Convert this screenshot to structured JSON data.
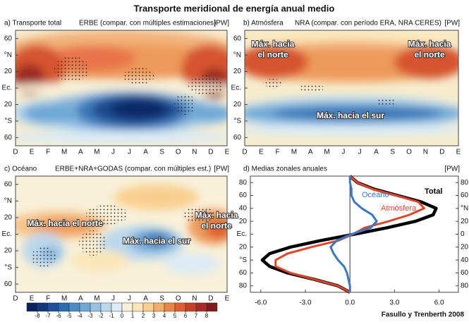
{
  "title": "Transporte meridional de energía anual medio",
  "credit": "Fasullo y Trenberth 2008",
  "colorbar": {
    "ticks": [
      -8,
      -7,
      -6,
      -5,
      -4,
      -3,
      -2,
      -1,
      0,
      1,
      2,
      3,
      4,
      5,
      6,
      7,
      8
    ],
    "colors": [
      "#0a1f5c",
      "#12357f",
      "#1c4f9c",
      "#2a6cb4",
      "#4a8ac6",
      "#6ea8d6",
      "#97c2e2",
      "#bcd8ec",
      "#dcebf5",
      "#f8f0d8",
      "#fbe6b8",
      "#f9cf8f",
      "#f5ac66",
      "#ee8444",
      "#e05e2f",
      "#c9402a",
      "#a82a26",
      "#7e1b1e"
    ]
  },
  "chart_data": [
    {
      "type": "contour",
      "title": "a) Transporte total",
      "subtitle": "ERBE (compar. con múltiples estimaciones)",
      "unit": "[PW]",
      "categories": [
        "D",
        "E",
        "F",
        "M",
        "A",
        "M",
        "J",
        "J",
        "A",
        "S",
        "O",
        "N",
        "D",
        "E"
      ],
      "ylim": [
        -70,
        70
      ],
      "yticks": [
        60,
        {
          "value": 40,
          "label": "°N"
        },
        20,
        {
          "value": 0,
          "label": "Ec."
        },
        {
          "value": -20,
          "label": "20"
        },
        {
          "value": -40,
          "label": "°S"
        },
        {
          "value": -60,
          "label": "60"
        }
      ],
      "annotations": []
    },
    {
      "type": "contour",
      "title": "b) Atmósfera",
      "subtitle": "NRA (compar. con período ERA, NRA CERES)",
      "unit": "[PW]",
      "categories": [
        "D",
        "E",
        "F",
        "M",
        "A",
        "M",
        "J",
        "J",
        "A",
        "S",
        "O",
        "N",
        "D",
        "E"
      ],
      "ylim": [
        -70,
        70
      ],
      "yticks": [
        60,
        {
          "value": 40,
          "label": "°N"
        },
        20,
        {
          "value": 0,
          "label": "Ec."
        },
        {
          "value": -20,
          "label": "20"
        },
        {
          "value": -40,
          "label": "°S"
        },
        {
          "value": -60,
          "label": "60"
        }
      ],
      "annotations": [
        [
          "Máx. hacia",
          "el norte"
        ],
        [
          "Máx. hacia",
          "el norte"
        ],
        [
          "Máx. hacia el sur"
        ]
      ]
    },
    {
      "type": "contour",
      "title": "c) Océano",
      "subtitle": "ERBE+NRA+GODAS (compar. con múltiples est.)",
      "unit": "[PW]",
      "categories": [
        "D",
        "E",
        "F",
        "M",
        "A",
        "M",
        "J",
        "J",
        "A",
        "S",
        "O",
        "N",
        "D",
        "E"
      ],
      "ylim": [
        -70,
        70
      ],
      "yticks": [
        60,
        {
          "value": 40,
          "label": "°N"
        },
        20,
        {
          "value": 0,
          "label": "Ec."
        },
        {
          "value": -20,
          "label": "20"
        },
        {
          "value": -40,
          "label": "°S"
        },
        {
          "value": -60,
          "label": "60"
        }
      ],
      "annotations": [
        [
          "Máx. hacia el norte"
        ],
        [
          "Máx. hacia el sur"
        ],
        [
          "Máx. hacia",
          "el norte"
        ]
      ]
    },
    {
      "type": "line",
      "title": "d) Medias zonales anuales",
      "unit": "[PW]",
      "xlim": [
        -6.7,
        7.3
      ],
      "xticks": [
        {
          "value": -6,
          "label": "-6.0"
        },
        {
          "value": -3,
          "label": "-3.0"
        },
        {
          "value": 0,
          "label": "0.0"
        },
        {
          "value": 3,
          "label": "3.0"
        },
        {
          "value": 6,
          "label": "6.0"
        }
      ],
      "ylim": [
        -90,
        90
      ],
      "yticks": [
        80,
        60,
        40,
        20,
        {
          "value": 0,
          "label": "Ec."
        },
        {
          "value": -20,
          "label": "20"
        },
        {
          "value": -40,
          "label": "°S"
        },
        {
          "value": -60,
          "label": "60"
        },
        {
          "value": -80,
          "label": "80"
        }
      ],
      "y2ticks": [
        80,
        60,
        {
          "value": 40,
          "label": "°N"
        },
        20,
        0,
        {
          "value": -20,
          "label": "20"
        },
        {
          "value": -40,
          "label": "40"
        },
        {
          "value": -60,
          "label": "60"
        },
        {
          "value": -80,
          "label": "80"
        }
      ],
      "y": [
        -90,
        -80,
        -70,
        -60,
        -50,
        -40,
        -30,
        -20,
        -10,
        0,
        10,
        20,
        30,
        40,
        50,
        60,
        70,
        80,
        90
      ],
      "series": [
        {
          "name": "Total",
          "color": "#000000",
          "values": [
            0,
            -0.8,
            -2.4,
            -4.2,
            -5.4,
            -5.9,
            -5.4,
            -4.0,
            -2.0,
            0.3,
            2.5,
            4.4,
            5.6,
            5.8,
            4.8,
            3.2,
            1.6,
            0.5,
            0
          ]
        },
        {
          "name": "Atmósfera",
          "color": "#e0452a",
          "values": [
            0,
            -0.8,
            -2.4,
            -4.0,
            -5.0,
            -5.0,
            -4.2,
            -2.6,
            -0.8,
            0.2,
            1.0,
            2.6,
            4.0,
            5.0,
            4.6,
            3.1,
            1.5,
            0.5,
            0
          ]
        },
        {
          "name": "Océano",
          "color": "#3a78c0",
          "values": [
            0,
            0,
            -0.1,
            -0.2,
            -0.4,
            -0.8,
            -1.1,
            -1.3,
            -0.9,
            0.1,
            1.4,
            1.8,
            1.5,
            0.8,
            0.3,
            0.1,
            0.1,
            0,
            0
          ]
        }
      ]
    }
  ]
}
